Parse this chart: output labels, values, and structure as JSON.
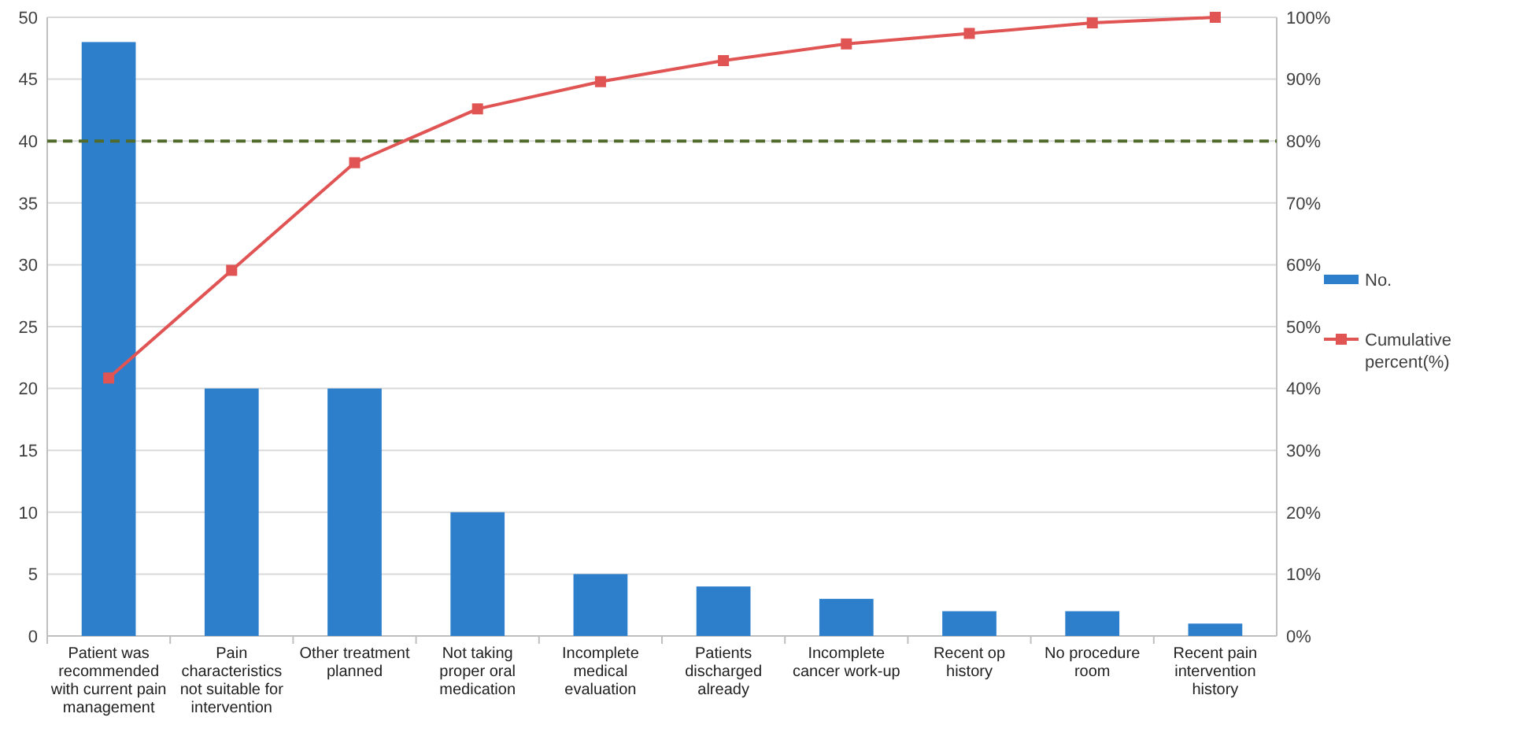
{
  "chart_data": {
    "type": "bar",
    "categories": [
      "Patient was recommended with current pain management",
      "Pain characteristics not suitable for intervention",
      "Other treatment planned",
      "Not taking proper oral medication",
      "Incomplete medical evaluation",
      "Patients discharged already",
      "Incomplete cancer work-up",
      "Recent op history",
      "No procedure room",
      "Recent pain intervention history"
    ],
    "series": [
      {
        "name": "No.",
        "color": "#2e7fcb",
        "values": [
          48,
          20,
          20,
          10,
          5,
          4,
          3,
          2,
          2,
          1
        ]
      },
      {
        "name": "Cumulative percent(%)",
        "type": "line",
        "axis": "y2",
        "color": "#e05454",
        "marker": "square",
        "values": [
          41.7,
          59.1,
          76.5,
          85.2,
          89.6,
          93.0,
          95.7,
          97.4,
          99.1,
          100
        ]
      }
    ],
    "ylim": [
      0,
      50
    ],
    "yticks": [
      0,
      5,
      10,
      15,
      20,
      25,
      30,
      35,
      40,
      45,
      50
    ],
    "y2lim": [
      0,
      100
    ],
    "y2ticks": [
      {
        "value": 0,
        "label": "0%"
      },
      {
        "value": 10,
        "label": "10%"
      },
      {
        "value": 20,
        "label": "20%"
      },
      {
        "value": 30,
        "label": "30%"
      },
      {
        "value": 40,
        "label": "40%"
      },
      {
        "value": 50,
        "label": "50%"
      },
      {
        "value": 60,
        "label": "60%"
      },
      {
        "value": 70,
        "label": "70%"
      },
      {
        "value": 80,
        "label": "80%"
      },
      {
        "value": 90,
        "label": "90%"
      },
      {
        "value": 100,
        "label": "100%"
      }
    ],
    "ref_lines": [
      {
        "axis": "y2",
        "value": 80,
        "color": "#4f6a2a",
        "line_style": "dashed"
      }
    ],
    "grid": "y",
    "legend": "right"
  }
}
